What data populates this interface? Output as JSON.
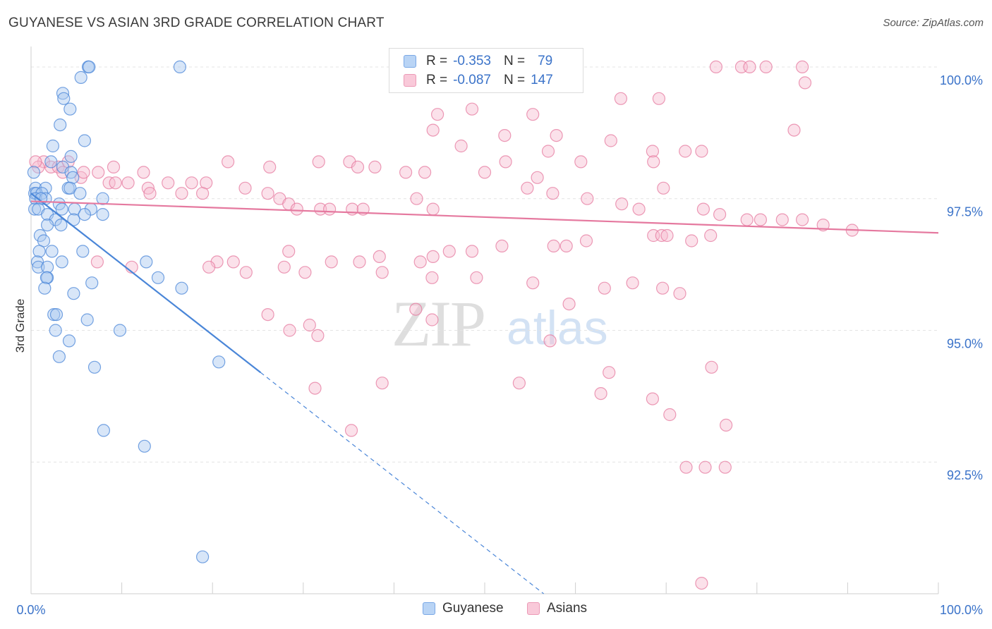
{
  "title": "GUYANESE VS ASIAN 3RD GRADE CORRELATION CHART",
  "source": "Source: ZipAtlas.com",
  "watermark": {
    "zip": "ZIP",
    "atlas": "atlas"
  },
  "legend_top": {
    "r_label": "R =",
    "n_label": "N =",
    "series": [
      {
        "name": "Guyanese",
        "r": "-0.353",
        "n": "79",
        "color": "#4a86d8"
      },
      {
        "name": "Asians",
        "r": "-0.087",
        "n": "147",
        "color": "#e5799f"
      }
    ]
  },
  "chart_data": {
    "type": "scatter",
    "title": "GUYANESE VS ASIAN 3RD GRADE CORRELATION CHART",
    "xlabel": "",
    "ylabel": "3rd Grade",
    "xlim": [
      0,
      100
    ],
    "ylim": [
      90.0,
      100.2
    ],
    "x_tick_labels": [
      "0.0%",
      "100.0%"
    ],
    "y_ticks": [
      92.5,
      95.0,
      97.5,
      100.0
    ],
    "y_tick_labels": [
      "92.5%",
      "95.0%",
      "97.5%",
      "100.0%"
    ],
    "grid": true,
    "series": [
      {
        "name": "Guyanese",
        "color": "#4a86d8",
        "fill": "#a9c8f0",
        "trend": {
          "x": [
            0,
            25.3
          ],
          "y": [
            97.6,
            94.2
          ],
          "dashed_to": [
            56.5,
            90.0
          ]
        },
        "points": [
          [
            6.3,
            100.0
          ],
          [
            6.4,
            100.0
          ],
          [
            16.4,
            100.0
          ],
          [
            5.5,
            99.8
          ],
          [
            3.5,
            99.5
          ],
          [
            3.6,
            99.4
          ],
          [
            4.3,
            99.2
          ],
          [
            3.2,
            98.9
          ],
          [
            5.9,
            98.6
          ],
          [
            2.4,
            98.5
          ],
          [
            4.4,
            98.3
          ],
          [
            2.2,
            98.2
          ],
          [
            3.5,
            98.1
          ],
          [
            4.4,
            98.0
          ],
          [
            0.3,
            98.0
          ],
          [
            4.6,
            97.9
          ],
          [
            0.5,
            97.7
          ],
          [
            1.6,
            97.7
          ],
          [
            4.1,
            97.7
          ],
          [
            4.3,
            97.7
          ],
          [
            0.4,
            97.6
          ],
          [
            0.6,
            97.6
          ],
          [
            1.2,
            97.6
          ],
          [
            5.4,
            97.6
          ],
          [
            0.5,
            97.5
          ],
          [
            1.6,
            97.5
          ],
          [
            7.9,
            97.5
          ],
          [
            1.1,
            97.5
          ],
          [
            3.1,
            97.4
          ],
          [
            0.4,
            97.3
          ],
          [
            0.8,
            97.3
          ],
          [
            3.4,
            97.3
          ],
          [
            4.8,
            97.3
          ],
          [
            6.6,
            97.3
          ],
          [
            1.8,
            97.2
          ],
          [
            5.9,
            97.2
          ],
          [
            7.9,
            97.2
          ],
          [
            2.7,
            97.1
          ],
          [
            4.7,
            97.1
          ],
          [
            1.8,
            97.0
          ],
          [
            3.3,
            97.0
          ],
          [
            1.0,
            96.8
          ],
          [
            1.4,
            96.7
          ],
          [
            0.9,
            96.5
          ],
          [
            2.3,
            96.5
          ],
          [
            5.7,
            96.5
          ],
          [
            0.7,
            96.3
          ],
          [
            3.4,
            96.3
          ],
          [
            12.7,
            96.3
          ],
          [
            0.8,
            96.2
          ],
          [
            1.8,
            96.2
          ],
          [
            1.8,
            96.0
          ],
          [
            1.7,
            96.0
          ],
          [
            14.0,
            96.0
          ],
          [
            6.7,
            95.9
          ],
          [
            1.5,
            95.8
          ],
          [
            16.6,
            95.8
          ],
          [
            4.7,
            95.7
          ],
          [
            2.5,
            95.3
          ],
          [
            2.8,
            95.3
          ],
          [
            6.2,
            95.2
          ],
          [
            2.7,
            95.0
          ],
          [
            9.8,
            95.0
          ],
          [
            4.2,
            94.8
          ],
          [
            3.1,
            94.5
          ],
          [
            20.7,
            94.4
          ],
          [
            7.0,
            94.3
          ],
          [
            8.0,
            93.1
          ],
          [
            12.5,
            92.8
          ],
          [
            18.9,
            90.7
          ]
        ]
      },
      {
        "name": "Asians",
        "color": "#e5799f",
        "fill": "#f7bcd0",
        "trend": {
          "x": [
            0,
            100
          ],
          "y": [
            97.45,
            96.85
          ]
        },
        "points": [
          [
            75.5,
            100.0
          ],
          [
            78.3,
            100.0
          ],
          [
            79.2,
            100.0
          ],
          [
            81.0,
            100.0
          ],
          [
            85.0,
            100.0
          ],
          [
            85.3,
            99.7
          ],
          [
            69.2,
            99.4
          ],
          [
            65.0,
            99.4
          ],
          [
            44.8,
            99.1
          ],
          [
            55.3,
            99.1
          ],
          [
            48.6,
            99.2
          ],
          [
            84.1,
            98.8
          ],
          [
            44.3,
            98.8
          ],
          [
            57.9,
            98.7
          ],
          [
            52.2,
            98.7
          ],
          [
            63.9,
            98.6
          ],
          [
            47.4,
            98.5
          ],
          [
            68.5,
            98.4
          ],
          [
            72.1,
            98.4
          ],
          [
            73.9,
            98.4
          ],
          [
            68.6,
            98.2
          ],
          [
            52.3,
            98.2
          ],
          [
            57.0,
            98.4
          ],
          [
            60.6,
            98.2
          ],
          [
            31.7,
            98.2
          ],
          [
            35.1,
            98.2
          ],
          [
            26.3,
            98.1
          ],
          [
            21.7,
            98.2
          ],
          [
            7.4,
            98.0
          ],
          [
            9.1,
            98.1
          ],
          [
            36.0,
            98.1
          ],
          [
            37.9,
            98.1
          ],
          [
            41.3,
            98.0
          ],
          [
            43.4,
            98.0
          ],
          [
            50.0,
            98.0
          ],
          [
            55.8,
            97.9
          ],
          [
            1.4,
            98.2
          ],
          [
            2.2,
            98.1
          ],
          [
            3.0,
            98.1
          ],
          [
            3.5,
            98.0
          ],
          [
            0.8,
            98.1
          ],
          [
            0.5,
            98.2
          ],
          [
            4.1,
            98.2
          ],
          [
            5.5,
            97.9
          ],
          [
            5.8,
            98.0
          ],
          [
            12.4,
            98.0
          ],
          [
            15.1,
            97.8
          ],
          [
            17.7,
            97.8
          ],
          [
            19.3,
            97.8
          ],
          [
            8.6,
            97.8
          ],
          [
            9.3,
            97.8
          ],
          [
            10.7,
            97.8
          ],
          [
            12.9,
            97.7
          ],
          [
            13.1,
            97.6
          ],
          [
            16.6,
            97.6
          ],
          [
            18.9,
            97.6
          ],
          [
            23.6,
            97.7
          ],
          [
            26.1,
            97.6
          ],
          [
            27.4,
            97.5
          ],
          [
            28.4,
            97.4
          ],
          [
            31.9,
            97.3
          ],
          [
            29.3,
            97.3
          ],
          [
            32.9,
            97.3
          ],
          [
            35.4,
            97.3
          ],
          [
            36.6,
            97.3
          ],
          [
            42.5,
            97.5
          ],
          [
            44.3,
            97.3
          ],
          [
            54.7,
            97.7
          ],
          [
            57.5,
            97.6
          ],
          [
            61.3,
            97.5
          ],
          [
            65.1,
            97.4
          ],
          [
            67.0,
            97.3
          ],
          [
            69.7,
            97.7
          ],
          [
            74.1,
            97.3
          ],
          [
            75.9,
            97.2
          ],
          [
            78.9,
            97.1
          ],
          [
            80.4,
            97.1
          ],
          [
            82.8,
            97.1
          ],
          [
            85.0,
            97.1
          ],
          [
            87.3,
            97.0
          ],
          [
            90.5,
            96.9
          ],
          [
            68.6,
            96.8
          ],
          [
            69.5,
            96.8
          ],
          [
            70.1,
            96.8
          ],
          [
            72.8,
            96.7
          ],
          [
            74.9,
            96.8
          ],
          [
            61.2,
            96.7
          ],
          [
            57.6,
            96.6
          ],
          [
            59.0,
            96.6
          ],
          [
            51.9,
            96.6
          ],
          [
            48.6,
            96.5
          ],
          [
            46.1,
            96.5
          ],
          [
            44.3,
            96.4
          ],
          [
            42.9,
            96.3
          ],
          [
            38.4,
            96.4
          ],
          [
            36.2,
            96.3
          ],
          [
            33.1,
            96.3
          ],
          [
            28.4,
            96.5
          ],
          [
            27.9,
            96.2
          ],
          [
            22.3,
            96.3
          ],
          [
            20.5,
            96.3
          ],
          [
            19.6,
            96.2
          ],
          [
            23.7,
            96.1
          ],
          [
            30.2,
            96.1
          ],
          [
            38.7,
            96.1
          ],
          [
            44.2,
            96.0
          ],
          [
            49.1,
            96.0
          ],
          [
            55.3,
            95.9
          ],
          [
            63.2,
            95.8
          ],
          [
            66.3,
            95.9
          ],
          [
            69.6,
            95.8
          ],
          [
            71.5,
            95.7
          ],
          [
            59.3,
            95.5
          ],
          [
            42.4,
            95.4
          ],
          [
            44.2,
            95.2
          ],
          [
            26.1,
            95.3
          ],
          [
            30.7,
            95.1
          ],
          [
            28.5,
            95.0
          ],
          [
            31.6,
            94.9
          ],
          [
            57.2,
            94.8
          ],
          [
            75.0,
            94.3
          ],
          [
            63.7,
            94.2
          ],
          [
            53.8,
            94.0
          ],
          [
            38.7,
            94.0
          ],
          [
            31.3,
            93.9
          ],
          [
            62.8,
            93.8
          ],
          [
            68.5,
            93.7
          ],
          [
            70.4,
            93.4
          ],
          [
            76.6,
            93.2
          ],
          [
            35.3,
            93.1
          ],
          [
            72.2,
            92.4
          ],
          [
            74.3,
            92.4
          ],
          [
            76.5,
            92.4
          ],
          [
            73.9,
            90.2
          ],
          [
            7.3,
            96.3
          ],
          [
            11.1,
            96.2
          ]
        ]
      }
    ]
  }
}
